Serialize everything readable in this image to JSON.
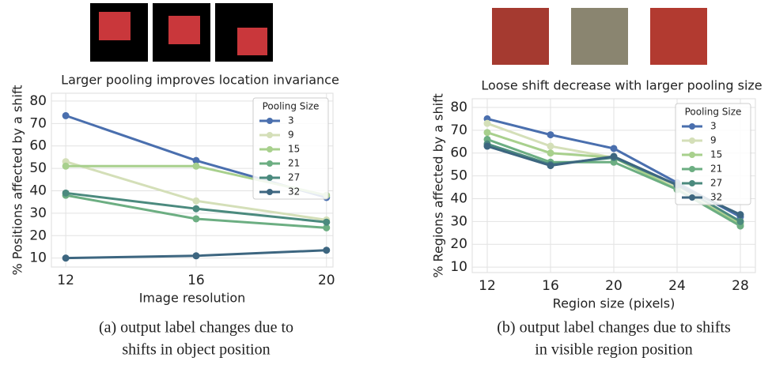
{
  "chart_data": [
    {
      "type": "line",
      "title": "Larger pooling improves location invariance",
      "x_label": "Image resolution",
      "y_label": "% Positions affected by a shift",
      "caption": [
        "(a) output label changes due to",
        "shifts in object position"
      ],
      "legend_title": "Pooling Size",
      "legend": "upper right",
      "grid": true,
      "x": [
        12,
        16,
        20
      ],
      "xlim": [
        11.56,
        20.2
      ],
      "xticks": [
        12,
        16,
        20
      ],
      "ylim": [
        6,
        83.5
      ],
      "yticks": [
        10,
        20,
        30,
        40,
        50,
        60,
        70,
        80
      ],
      "series": [
        {
          "name": "3",
          "color": "#4a6fae",
          "values": [
            73.5,
            53.5,
            37
          ]
        },
        {
          "name": "9",
          "color": "#d4dfb8",
          "values": [
            53,
            35.5,
            27
          ]
        },
        {
          "name": "15",
          "color": "#a8d08d",
          "values": [
            51,
            51,
            38
          ]
        },
        {
          "name": "21",
          "color": "#6cae82",
          "values": [
            38,
            27.5,
            23.5
          ]
        },
        {
          "name": "27",
          "color": "#4b8a7e",
          "values": [
            39,
            32,
            26
          ]
        },
        {
          "name": "32",
          "color": "#3d6680",
          "values": [
            10,
            11,
            13.5
          ]
        }
      ]
    },
    {
      "type": "line",
      "title": "Loose shift decrease with larger pooling size",
      "x_label": "Region size (pixels)",
      "y_label": "% Regions affected by a shift",
      "caption": [
        "(b) output label changes due to shifts",
        "in visible region position"
      ],
      "legend_title": "Pooling Size",
      "legend": "upper right",
      "grid": true,
      "x": [
        12,
        16,
        20,
        24,
        28
      ],
      "xlim": [
        11.05,
        28.95
      ],
      "xticks": [
        12,
        16,
        20,
        24,
        28
      ],
      "ylim": [
        7.6,
        83.8
      ],
      "yticks": [
        10,
        20,
        30,
        40,
        50,
        60,
        70,
        80
      ],
      "series": [
        {
          "name": "3",
          "color": "#4a6fae",
          "values": [
            75,
            68,
            62,
            47,
            32
          ]
        },
        {
          "name": "9",
          "color": "#d4dfb8",
          "values": [
            73,
            63,
            58,
            45,
            30
          ]
        },
        {
          "name": "15",
          "color": "#a8d08d",
          "values": [
            69,
            60,
            58,
            44,
            29
          ]
        },
        {
          "name": "21",
          "color": "#6cae82",
          "values": [
            66,
            56,
            56,
            44,
            28
          ]
        },
        {
          "name": "27",
          "color": "#4b8a7e",
          "values": [
            64,
            55,
            58,
            46,
            30
          ]
        },
        {
          "name": "32",
          "color": "#3d6680",
          "values": [
            63,
            54.5,
            58.5,
            46,
            33
          ]
        }
      ]
    }
  ]
}
